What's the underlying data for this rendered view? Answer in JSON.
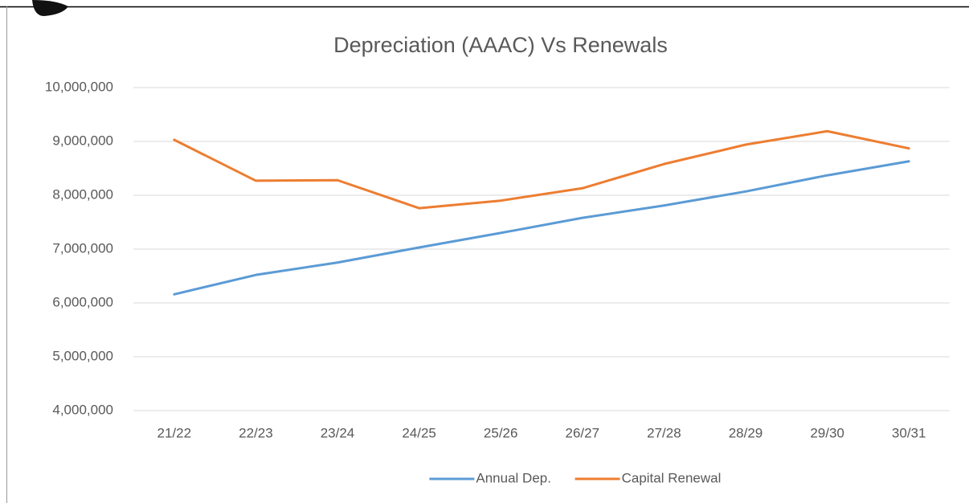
{
  "chart_data": {
    "type": "line",
    "title": "Depreciation (AAAC) Vs Renewals",
    "categories": [
      "21/22",
      "22/23",
      "23/24",
      "24/25",
      "25/26",
      "26/27",
      "27/28",
      "28/29",
      "29/30",
      "30/31"
    ],
    "series": [
      {
        "name": "Annual Dep.",
        "color": "#5b9bd5",
        "values": [
          6160000,
          6520000,
          6750000,
          7030000,
          7300000,
          7580000,
          7810000,
          8070000,
          8370000,
          8630000
        ]
      },
      {
        "name": "Capital Renewal",
        "color": "#ed7d31",
        "values": [
          9030000,
          8270000,
          8280000,
          7760000,
          7900000,
          8130000,
          8580000,
          8940000,
          9190000,
          8870000
        ]
      }
    ],
    "ylim": [
      4000000,
      10000000
    ],
    "yticks": [
      {
        "value": 4000000,
        "label": "4,000,000"
      },
      {
        "value": 5000000,
        "label": "5,000,000"
      },
      {
        "value": 6000000,
        "label": "6,000,000"
      },
      {
        "value": 7000000,
        "label": "7,000,000"
      },
      {
        "value": 8000000,
        "label": "8,000,000"
      },
      {
        "value": 9000000,
        "label": "9,000,000"
      },
      {
        "value": 10000000,
        "label": "10,000,000"
      }
    ],
    "grid": true,
    "legend": "bottom"
  }
}
